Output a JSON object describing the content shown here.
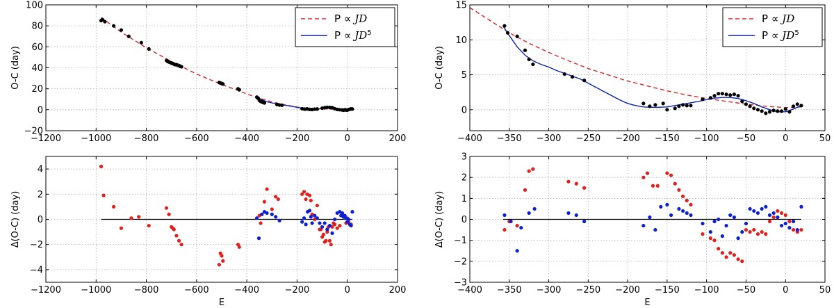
{
  "chart_data": [
    {
      "id": "tl",
      "type": "scatter",
      "xlim": [
        -1200,
        200
      ],
      "ylim": [
        -20,
        100
      ],
      "xticks": [
        -1200,
        -1000,
        -800,
        -600,
        -400,
        -200,
        0,
        200
      ],
      "yticks": [
        -20,
        0,
        20,
        40,
        60,
        80,
        100
      ],
      "xtick_labels": [
        "−1200",
        "−1000",
        "−800",
        "−600",
        "−400",
        "−200",
        "0",
        "200"
      ],
      "ytick_labels": [
        "−20",
        "0",
        "20",
        "40",
        "60",
        "80",
        "100"
      ],
      "ylabel": "O-C (day)",
      "xlabel": "",
      "grid": true,
      "legend": {
        "position": "top-right",
        "entries": [
          {
            "prefix": "P ∝ ",
            "math": "JD",
            "sup": "",
            "color": "#d62728",
            "dash": true
          },
          {
            "prefix": "P ∝ ",
            "math": "JD",
            "sup": "5",
            "color": "#0a1fb0",
            "dash": false
          }
        ]
      },
      "lines": [
        {
          "name": "P ∝ JD",
          "color": "#d62728",
          "dash": true,
          "x": [
            -980,
            -900,
            -800,
            -700,
            -600,
            -500,
            -430,
            -400,
            -350,
            -300,
            -250,
            -200,
            -150,
            -100,
            -50,
            0,
            20
          ],
          "y": [
            88,
            74,
            59,
            46,
            34,
            24,
            18,
            15,
            11,
            7.5,
            4.8,
            2.5,
            1.3,
            0.8,
            0.5,
            0.5,
            0.6
          ]
        },
        {
          "name": "P ∝ JD^5",
          "color": "#0a1fb0",
          "dash": false,
          "x": [
            -360,
            -340,
            -320,
            -300,
            -280,
            -260,
            -240,
            -220,
            -200,
            -180,
            -160,
            -140,
            -120,
            -100,
            -80,
            -60,
            -40,
            -20,
            0,
            20
          ],
          "y": [
            12,
            9.5,
            7.6,
            6.5,
            5.6,
            4.8,
            4,
            3.2,
            2.3,
            1.4,
            0.8,
            0.5,
            0.7,
            1.3,
            1.7,
            1.6,
            0.8,
            0.1,
            -0.3,
            0.7
          ]
        }
      ],
      "points": {
        "color": "#000000",
        "x": [
          -980,
          -975,
          -965,
          -930,
          -900,
          -870,
          -820,
          -790,
          -720,
          -715,
          -710,
          -705,
          -700,
          -695,
          -690,
          -685,
          -680,
          -675,
          -670,
          -665,
          -660,
          -510,
          -505,
          -500,
          -495,
          -435,
          -430,
          -360,
          -355,
          -350,
          -345,
          -340,
          -335,
          -330,
          -280,
          -270,
          -260,
          -180,
          -170,
          -160,
          -150,
          -140,
          -130,
          -120,
          -100,
          -90,
          -80,
          -70,
          -60,
          -50,
          -40,
          -30,
          -20,
          -15,
          -10,
          -5,
          0,
          5,
          10,
          15,
          20
        ],
        "y": [
          85,
          86,
          84,
          80,
          76,
          70,
          64,
          58,
          47,
          46,
          45.5,
          45,
          44.5,
          44,
          43.5,
          43,
          43,
          42.5,
          42,
          41.5,
          41,
          26,
          25.5,
          25,
          24.5,
          20,
          19,
          12,
          11,
          9,
          8,
          7.5,
          7,
          6.5,
          5,
          4.5,
          4.3,
          1,
          0.5,
          0.8,
          0.3,
          0.2,
          0.6,
          0.7,
          1.5,
          2,
          2.3,
          2.2,
          2,
          1,
          0.3,
          0,
          -0.2,
          -0.5,
          0,
          -0.3,
          -0.4,
          0.2,
          0.5,
          0.8,
          0.7
        ]
      }
    },
    {
      "id": "tr",
      "type": "scatter",
      "xlim": [
        -400,
        50
      ],
      "ylim": [
        -3,
        15
      ],
      "xticks": [
        -400,
        -350,
        -300,
        -250,
        -200,
        -150,
        -100,
        -50,
        0,
        50
      ],
      "yticks": [
        0,
        5,
        10,
        15
      ],
      "xtick_labels": [
        "−400",
        "−350",
        "−300",
        "−250",
        "−200",
        "−150",
        "−100",
        "−50",
        "0",
        "50"
      ],
      "ytick_labels": [
        "0",
        "5",
        "10",
        "15"
      ],
      "ylabel": "O-C (day)",
      "xlabel": "",
      "grid": true,
      "legend": {
        "position": "top-right",
        "entries": [
          {
            "prefix": "P ∝ ",
            "math": "JD",
            "sup": "",
            "color": "#d62728",
            "dash": true
          },
          {
            "prefix": "P ∝ ",
            "math": "JD",
            "sup": "5",
            "color": "#0a1fb0",
            "dash": false
          }
        ]
      },
      "lines": [
        {
          "name": "P ∝ JD",
          "color": "#d62728",
          "dash": true,
          "x": [
            -400,
            -375,
            -350,
            -325,
            -300,
            -275,
            -250,
            -225,
            -200,
            -175,
            -150,
            -125,
            -100,
            -75,
            -50,
            -25,
            0,
            20
          ],
          "y": [
            14.6,
            12.8,
            11.0,
            9.5,
            8.2,
            7.0,
            5.9,
            5.0,
            4.1,
            3.4,
            2.7,
            2.1,
            1.6,
            1.2,
            0.8,
            0.5,
            0.3,
            0.4
          ]
        },
        {
          "name": "P ∝ JD^5",
          "color": "#0a1fb0",
          "dash": false,
          "x": [
            -358,
            -350,
            -340,
            -330,
            -320,
            -310,
            -300,
            -290,
            -280,
            -270,
            -260,
            -250,
            -240,
            -230,
            -220,
            -210,
            -200,
            -190,
            -180,
            -170,
            -160,
            -150,
            -140,
            -130,
            -120,
            -110,
            -100,
            -90,
            -80,
            -70,
            -60,
            -50,
            -40,
            -30,
            -20,
            -10,
            0,
            10,
            20
          ],
          "y": [
            12.0,
            10.6,
            9.0,
            7.8,
            7.0,
            6.5,
            6.1,
            5.6,
            5.2,
            4.8,
            4.4,
            3.8,
            3.2,
            2.6,
            2.0,
            1.4,
            0.9,
            0.6,
            0.4,
            0.35,
            0.35,
            0.4,
            0.6,
            0.8,
            1.0,
            1.2,
            1.45,
            1.65,
            1.75,
            1.75,
            1.6,
            1.3,
            0.9,
            0.4,
            0.0,
            -0.3,
            -0.3,
            0.1,
            0.6
          ]
        }
      ],
      "points": {
        "color": "#000000",
        "x": [
          -356,
          -352,
          -340,
          -330,
          -325,
          -320,
          -280,
          -270,
          -255,
          -180,
          -172,
          -165,
          -155,
          -150,
          -140,
          -135,
          -130,
          -125,
          -120,
          -105,
          -95,
          -90,
          -85,
          -80,
          -75,
          -70,
          -65,
          -60,
          -55,
          -50,
          -45,
          -40,
          -35,
          -30,
          -25,
          -20,
          -15,
          -10,
          -5,
          0,
          5,
          10,
          15,
          20
        ],
        "y": [
          12,
          11,
          10.5,
          8.5,
          7.2,
          6.5,
          5.1,
          4.7,
          4.2,
          0.9,
          0.5,
          0.7,
          0.9,
          0.0,
          0.2,
          0.5,
          0.7,
          0.6,
          0.6,
          1.5,
          1.7,
          2.0,
          2.3,
          2.3,
          2.2,
          2.1,
          2.2,
          2.0,
          1.2,
          0.8,
          0.5,
          0.2,
          0.0,
          -0.2,
          -0.5,
          -0.3,
          -0.1,
          -0.2,
          -0.2,
          0.1,
          -0.3,
          0.5,
          0.8,
          0.6
        ]
      }
    },
    {
      "id": "bl",
      "type": "scatter",
      "xlim": [
        -1200,
        200
      ],
      "ylim": [
        -5,
        5
      ],
      "xticks": [
        -1200,
        -1000,
        -800,
        -600,
        -400,
        -200,
        0,
        200
      ],
      "yticks": [
        -4,
        -2,
        0,
        2,
        4
      ],
      "xtick_labels": [
        "−1200",
        "−1000",
        "−800",
        "−600",
        "−400",
        "−200",
        "0",
        "200"
      ],
      "ytick_labels": [
        "−4",
        "−2",
        "0",
        "2",
        "4"
      ],
      "ylabel": "Δ(O-C) (day)",
      "xlabel": "E",
      "grid": true,
      "hline": {
        "y": 0,
        "x0": -980,
        "x1": 20
      },
      "series": [
        {
          "name": "",
          "color": "#e2201b",
          "x": [
            -980,
            -970,
            -930,
            -900,
            -860,
            -830,
            -790,
            -720,
            -710,
            -700,
            -695,
            -690,
            -680,
            -670,
            -660,
            -510,
            -505,
            -500,
            -495,
            -435,
            -430,
            -350,
            -345,
            -330,
            -320,
            -300,
            -285,
            -275,
            -180,
            -172,
            -165,
            -160,
            -150,
            -145,
            -140,
            -130,
            -120,
            -110,
            -105,
            -100,
            -95,
            -90,
            -85,
            -80,
            -75,
            -70,
            -65,
            -60,
            -55,
            -50,
            -40,
            -30,
            -20,
            -15,
            -10,
            -5,
            0,
            5,
            10,
            15
          ],
          "y": [
            4.2,
            1.9,
            1.0,
            -0.7,
            0.1,
            0.2,
            -0.5,
            0.9,
            0.4,
            -0.6,
            -0.7,
            -0.8,
            -1.3,
            -1.7,
            -2.0,
            -3.6,
            -2.7,
            -2.9,
            -3.3,
            -2.0,
            -2.2,
            0.3,
            -0.3,
            1.4,
            2.4,
            0.8,
            1.8,
            1.6,
            2.0,
            2.2,
            1.6,
            2.0,
            1.9,
            1.5,
            0.4,
            0.0,
            1.1,
            -0.8,
            -0.8,
            -1.4,
            -1.2,
            -1.8,
            -1.7,
            -1.0,
            -0.6,
            -1.7,
            -2.0,
            -0.6,
            -0.3,
            -0.4,
            -0.7,
            -0.5,
            0.4,
            0.2,
            0.3,
            -0.3,
            0.1,
            -0.2,
            -0.4,
            -0.4
          ]
        },
        {
          "name": "",
          "color": "#0a1fd6",
          "x": [
            -360,
            -352,
            -340,
            -330,
            -320,
            -300,
            -285,
            -270,
            -180,
            -172,
            -165,
            -158,
            -150,
            -145,
            -140,
            -130,
            -120,
            -110,
            -100,
            -90,
            -80,
            -70,
            -60,
            -50,
            -40,
            -30,
            -25,
            -20,
            -15,
            -10,
            -5,
            0,
            5,
            10,
            15,
            20
          ],
          "y": [
            0.1,
            -1.5,
            0.4,
            0.6,
            0.5,
            0.4,
            0.2,
            -0.1,
            -0.2,
            0.1,
            -0.4,
            0.6,
            0.7,
            0.2,
            -0.3,
            0.3,
            0.1,
            -0.3,
            -0.6,
            -0.3,
            -0.8,
            -0.5,
            -1.1,
            0.0,
            0.5,
            0.6,
            0.3,
            0.5,
            0.2,
            0.3,
            0.1,
            -0.2,
            0.0,
            -0.4,
            -0.5,
            0.6
          ]
        }
      ]
    },
    {
      "id": "br",
      "type": "scatter",
      "xlim": [
        -400,
        50
      ],
      "ylim": [
        -3,
        3
      ],
      "xticks": [
        -400,
        -350,
        -300,
        -250,
        -200,
        -150,
        -100,
        -50,
        0,
        50
      ],
      "yticks": [
        -3,
        -2,
        -1,
        0,
        1,
        2,
        3
      ],
      "xtick_labels": [
        "−400",
        "−350",
        "−300",
        "−250",
        "−200",
        "−150",
        "−100",
        "−50",
        "0",
        "50"
      ],
      "ytick_labels": [
        "−3",
        "−2",
        "−1",
        "0",
        "1",
        "2",
        "3"
      ],
      "ylabel": "Δ(O-C) (day)",
      "xlabel": "E",
      "grid": true,
      "hline": {
        "y": 0,
        "x0": -358,
        "x1": 20
      },
      "series": [
        {
          "name": "",
          "color": "#e2201b",
          "x": [
            -356,
            -350,
            -340,
            -330,
            -325,
            -320,
            -275,
            -265,
            -255,
            -180,
            -175,
            -168,
            -162,
            -150,
            -145,
            -140,
            -135,
            -130,
            -125,
            -120,
            -105,
            -95,
            -90,
            -85,
            -80,
            -75,
            -70,
            -65,
            -60,
            -55,
            -50,
            -45,
            -40,
            -35,
            -30,
            -25,
            -20,
            -15,
            -10,
            -5,
            0,
            5,
            10,
            15,
            20
          ],
          "y": [
            -0.5,
            -0.1,
            -0.3,
            1.4,
            2.3,
            2.4,
            1.8,
            1.7,
            1.5,
            2.0,
            2.2,
            1.6,
            1.6,
            2.2,
            2.1,
            1.7,
            1.4,
            1.1,
            0.9,
            0.7,
            -0.7,
            -0.9,
            -1.0,
            -1.4,
            -1.6,
            -1.8,
            -1.6,
            -1.7,
            -1.9,
            -2.0,
            -0.5,
            -0.6,
            -0.5,
            -0.7,
            -0.6,
            -0.7,
            -0.1,
            0.1,
            0.4,
            0.3,
            0.2,
            -0.1,
            -0.5,
            -0.6,
            -0.5
          ]
        },
        {
          "name": "",
          "color": "#0a1fd6",
          "x": [
            -356,
            -348,
            -340,
            -335,
            -325,
            -318,
            -275,
            -265,
            -255,
            -180,
            -172,
            -165,
            -158,
            -150,
            -145,
            -135,
            -130,
            -125,
            -120,
            -105,
            -95,
            -90,
            -85,
            -80,
            -75,
            -70,
            -65,
            -60,
            -55,
            -50,
            -45,
            -40,
            -35,
            -30,
            -25,
            -20,
            -15,
            -10,
            -5,
            0,
            5,
            10,
            15,
            20
          ],
          "y": [
            0.2,
            -0.1,
            -1.5,
            -0.4,
            0.3,
            0.5,
            0.3,
            0.2,
            -0.1,
            -0.3,
            0.1,
            -0.5,
            0.6,
            0.7,
            0.2,
            0.5,
            0.4,
            0.3,
            0.2,
            -0.2,
            -0.6,
            -0.1,
            0.0,
            -0.8,
            -0.3,
            0.2,
            0.1,
            -0.9,
            -0.6,
            -0.2,
            0.5,
            0.4,
            0.3,
            0.5,
            0.6,
            0.2,
            0.3,
            0.1,
            -0.3,
            -0.2,
            -0.4,
            -0.1,
            -0.5,
            0.6
          ]
        }
      ]
    }
  ]
}
